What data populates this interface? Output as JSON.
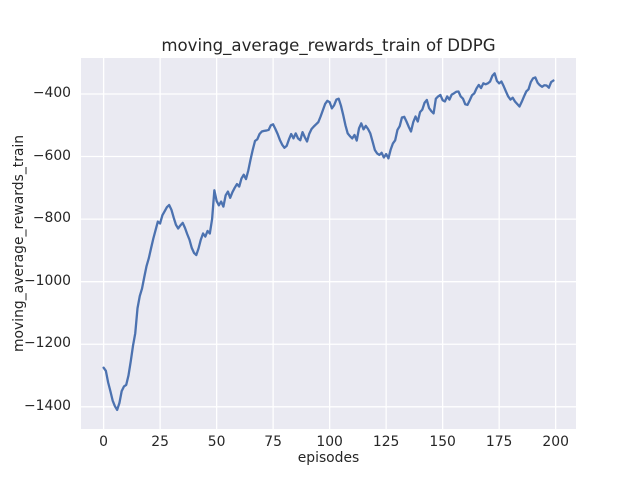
{
  "figure": {
    "title": "moving_average_rewards_train of DDPG"
  },
  "chart_data": {
    "type": "line",
    "title": "moving_average_rewards_train of DDPG",
    "xlabel": "episodes",
    "ylabel": "moving_average_rewards_train",
    "x_ticks": [
      0,
      25,
      50,
      75,
      100,
      125,
      150,
      175,
      200
    ],
    "y_ticks": [
      -400,
      -600,
      -800,
      -1000,
      -1200,
      -1400
    ],
    "xlim": [
      -10,
      209
    ],
    "ylim": [
      -1471,
      -285
    ],
    "grid": true,
    "legend_position": "none",
    "style": "seaborn-darkgrid",
    "colors": {
      "axes_background": "#eaeaf2",
      "grid": "#ffffff",
      "line": "#4c72b0",
      "text": "#262626",
      "figure_background": "#ffffff"
    },
    "series": [
      {
        "name": "moving_average_rewards_train",
        "x_start": 0,
        "x_step": 1,
        "values": [
          -1275,
          -1285,
          -1322,
          -1350,
          -1380,
          -1398,
          -1410,
          -1388,
          -1350,
          -1335,
          -1330,
          -1300,
          -1255,
          -1205,
          -1165,
          -1085,
          -1046,
          -1022,
          -985,
          -950,
          -925,
          -893,
          -862,
          -835,
          -808,
          -814,
          -788,
          -775,
          -762,
          -755,
          -770,
          -795,
          -818,
          -830,
          -820,
          -812,
          -828,
          -848,
          -866,
          -892,
          -908,
          -915,
          -894,
          -866,
          -846,
          -856,
          -838,
          -846,
          -800,
          -708,
          -742,
          -756,
          -744,
          -760,
          -724,
          -712,
          -732,
          -714,
          -700,
          -688,
          -696,
          -670,
          -658,
          -672,
          -645,
          -610,
          -578,
          -550,
          -545,
          -528,
          -520,
          -518,
          -517,
          -515,
          -500,
          -497,
          -512,
          -528,
          -547,
          -562,
          -572,
          -566,
          -545,
          -528,
          -542,
          -526,
          -542,
          -548,
          -522,
          -538,
          -552,
          -527,
          -512,
          -504,
          -497,
          -490,
          -472,
          -452,
          -432,
          -422,
          -426,
          -446,
          -436,
          -418,
          -415,
          -437,
          -467,
          -500,
          -526,
          -535,
          -542,
          -531,
          -549,
          -510,
          -494,
          -513,
          -502,
          -512,
          -526,
          -552,
          -579,
          -590,
          -595,
          -588,
          -603,
          -592,
          -606,
          -578,
          -558,
          -548,
          -515,
          -503,
          -475,
          -473,
          -488,
          -505,
          -520,
          -490,
          -472,
          -488,
          -458,
          -450,
          -428,
          -419,
          -445,
          -455,
          -462,
          -415,
          -408,
          -403,
          -420,
          -424,
          -408,
          -418,
          -402,
          -398,
          -393,
          -392,
          -408,
          -415,
          -433,
          -435,
          -420,
          -404,
          -398,
          -382,
          -371,
          -381,
          -366,
          -369,
          -366,
          -360,
          -342,
          -334,
          -358,
          -366,
          -360,
          -375,
          -392,
          -408,
          -418,
          -412,
          -424,
          -432,
          -440,
          -425,
          -408,
          -392,
          -385,
          -362,
          -350,
          -347,
          -364,
          -372,
          -377,
          -372,
          -373,
          -380,
          -362,
          -357
        ]
      }
    ]
  }
}
